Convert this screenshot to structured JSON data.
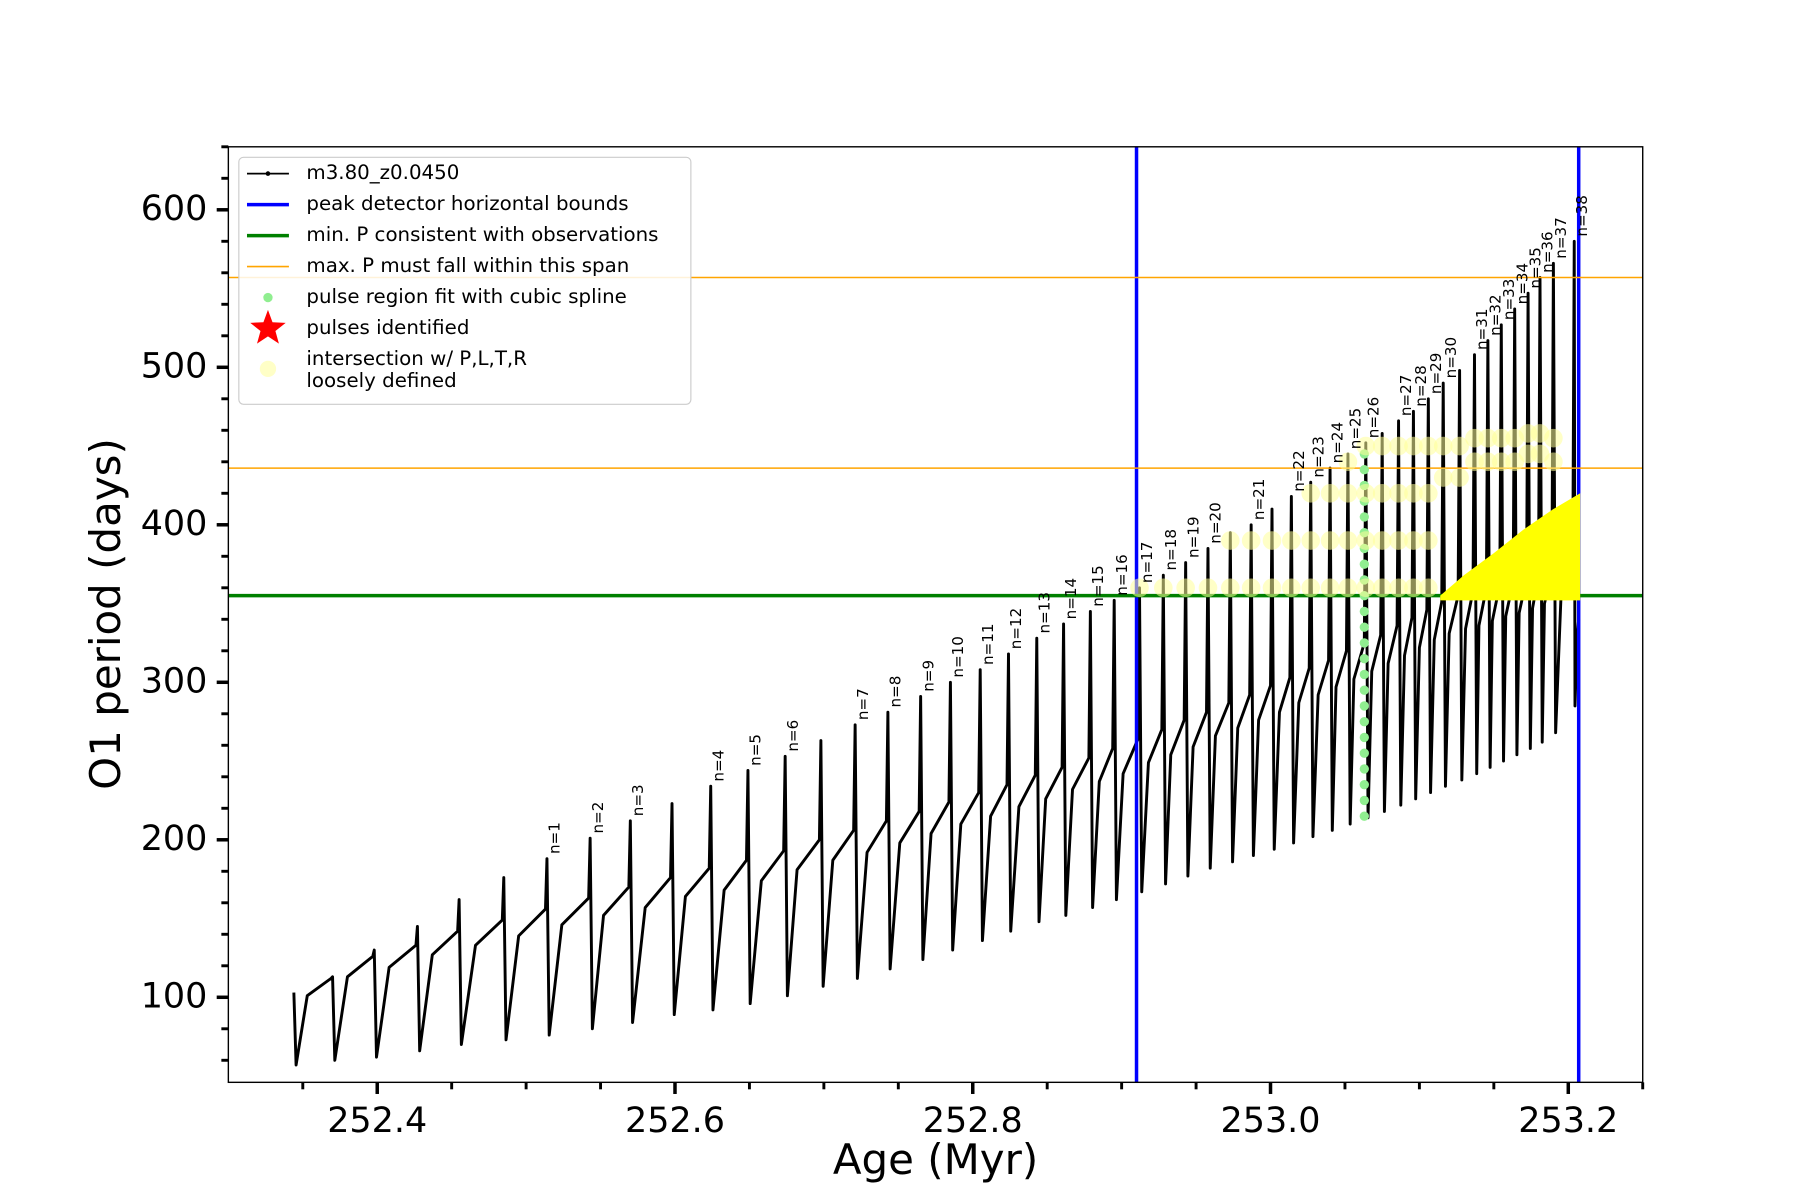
{
  "chart_data": {
    "type": "line",
    "xlabel": "Age (Myr)",
    "ylabel": "O1 period (days)",
    "xlim": [
      252.3,
      253.25
    ],
    "ylim": [
      46,
      640
    ],
    "xticks": [
      252.4,
      252.6,
      252.8,
      {
        "value": 253,
        "label": "253.0"
      },
      253.2
    ],
    "xminorticks": [
      252.35,
      252.45,
      252.5,
      252.55,
      252.65,
      252.7,
      252.75,
      252.85,
      252.9,
      252.95,
      253.05,
      253.1,
      253.15,
      253.25
    ],
    "yticks": [
      100,
      200,
      300,
      400,
      500,
      600
    ],
    "yminorticks": [
      60,
      80,
      120,
      140,
      160,
      180,
      220,
      240,
      260,
      280,
      320,
      340,
      360,
      380,
      420,
      440,
      460,
      480,
      520,
      540,
      560,
      580,
      620,
      640
    ],
    "legend": "upper left",
    "series": [
      {
        "name": "m3.80_z0.0450",
        "type": "line",
        "color": "#000000",
        "linewidth": 2.5,
        "x": [
          252.344,
          252.3455,
          252.353,
          252.369,
          252.37,
          252.3715,
          252.38,
          252.397,
          252.398,
          252.3995,
          252.408,
          252.426,
          252.427,
          252.4285,
          252.437,
          252.454,
          252.455,
          252.4565,
          252.466,
          252.484,
          252.485,
          252.4865,
          252.495,
          252.513,
          252.514,
          252.5155,
          252.524,
          252.542,
          252.543,
          252.5445,
          252.552,
          252.569,
          252.57,
          252.5715,
          252.58,
          252.597,
          252.598,
          252.5995,
          252.607,
          252.623,
          252.624,
          252.6255,
          252.633,
          252.648,
          252.649,
          252.6505,
          252.658,
          252.673,
          252.674,
          252.6755,
          252.682,
          252.697,
          252.698,
          252.6995,
          252.706,
          252.72,
          252.721,
          252.7225,
          252.729,
          252.742,
          252.743,
          252.7445,
          252.751,
          252.764,
          252.765,
          252.7665,
          252.772,
          252.784,
          252.785,
          252.7865,
          252.792,
          252.804,
          252.805,
          252.8065,
          252.812,
          252.823,
          252.824,
          252.8255,
          252.831,
          252.842,
          252.843,
          252.8445,
          252.849,
          252.86,
          252.861,
          252.8625,
          252.867,
          252.878,
          252.879,
          252.8805,
          252.885,
          252.894,
          252.895,
          252.8965,
          252.901,
          252.911,
          252.912,
          252.9135,
          252.918,
          252.927,
          252.928,
          252.9295,
          252.933,
          252.942,
          252.943,
          252.9445,
          252.948,
          252.957,
          252.958,
          252.9595,
          252.963,
          252.972,
          252.973,
          252.9745,
          252.978,
          252.986,
          252.987,
          252.9885,
          252.992,
          253.0,
          253.001,
          253.0025,
          253.006,
          253.013,
          253.014,
          253.0155,
          253.019,
          253.026,
          253.027,
          253.0285,
          253.032,
          253.039,
          253.04,
          253.0415,
          253.044,
          253.051,
          253.052,
          253.0535,
          253.056,
          253.063,
          253.064,
          253.0655,
          253.068,
          253.074,
          253.075,
          253.0765,
          253.079,
          253.085,
          253.086,
          253.0875,
          253.09,
          253.095,
          253.096,
          253.0975,
          253.1,
          253.105,
          253.106,
          253.1075,
          253.11,
          253.115,
          253.116,
          253.1175,
          253.12,
          253.126,
          253.127,
          253.1285,
          253.131,
          253.136,
          253.137,
          253.1385,
          253.14,
          253.145,
          253.146,
          253.1475,
          253.149,
          253.154,
          253.155,
          253.1565,
          253.158,
          253.163,
          253.164,
          253.1655,
          253.167,
          253.172,
          253.173,
          253.1745,
          253.176,
          253.18,
          253.181,
          253.1825,
          253.184,
          253.189,
          253.19,
          253.1915,
          253.195,
          253.203,
          253.204,
          253.2045,
          253.206,
          253.207
        ],
        "values": [
          103,
          57,
          101,
          112,
          113,
          60,
          113,
          126,
          130,
          62,
          119,
          133,
          145,
          66,
          127,
          142,
          162,
          70,
          133,
          149,
          176,
          73,
          139,
          156,
          188,
          76,
          146,
          163,
          201,
          80,
          152,
          170,
          212,
          84,
          157,
          176,
          223,
          89,
          164,
          182,
          234,
          92,
          168,
          187,
          244,
          96,
          174,
          193,
          253,
          101,
          181,
          200,
          263,
          107,
          187,
          206,
          273,
          112,
          192,
          212,
          281,
          118,
          198,
          218,
          291,
          124,
          204,
          224,
          300,
          130,
          210,
          230,
          308,
          136,
          215,
          235,
          318,
          142,
          221,
          241,
          328,
          148,
          226,
          246,
          337,
          152,
          232,
          252,
          345,
          157,
          237,
          258,
          352,
          162,
          242,
          264,
          360,
          167,
          249,
          270,
          368,
          172,
          254,
          276,
          376,
          177,
          259,
          281,
          385,
          182,
          266,
          287,
          395,
          186,
          271,
          292,
          400,
          190,
          276,
          298,
          410,
          194,
          281,
          303,
          418,
          198,
          287,
          309,
          427,
          202,
          292,
          314,
          436,
          206,
          297,
          320,
          445,
          210,
          302,
          325,
          452,
          214,
          307,
          330,
          458,
          218,
          312,
          336,
          466,
          222,
          317,
          341,
          472,
          226,
          322,
          346,
          480,
          230,
          327,
          351,
          490,
          234,
          331,
          355,
          498,
          238,
          334,
          358,
          508,
          242,
          336,
          360,
          517,
          246,
          339,
          362,
          527,
          250,
          342,
          364,
          537,
          254,
          344,
          366,
          547,
          258,
          347,
          368,
          557,
          262,
          350,
          370,
          566,
          268,
          352,
          372,
          580,
          285,
          330,
          340
        ]
      },
      {
        "name": "peak detector horizontal bounds",
        "type": "vline",
        "color": "#0000ff",
        "linewidth": 3,
        "x": [
          252.91,
          253.207
        ]
      },
      {
        "name": "min. P consistent with observations",
        "type": "hline",
        "color": "#008000",
        "linewidth": 3,
        "values": [
          355
        ]
      },
      {
        "name": "max. P must fall within this span",
        "type": "hline",
        "color": "#ffa500",
        "linewidth": 1.3,
        "values": [
          557,
          436
        ]
      },
      {
        "name": "pulse region fit with cubic spline",
        "type": "scatter",
        "color": "#90ee90",
        "marker_size": 4,
        "alpha": 1,
        "x": [
          253.063,
          253.063,
          253.063,
          253.063,
          253.063,
          253.063,
          253.063,
          253.063,
          253.063,
          253.063,
          253.063,
          253.063,
          253.063,
          253.063,
          253.063,
          253.063,
          253.063,
          253.063,
          253.063,
          253.063,
          253.063,
          253.063,
          253.063,
          253.063
        ],
        "values": [
          215,
          225,
          235,
          245,
          255,
          265,
          275,
          285,
          295,
          305,
          315,
          325,
          335,
          345,
          355,
          365,
          375,
          385,
          395,
          405,
          415,
          425,
          435,
          445
        ]
      },
      {
        "name": "pulses identified",
        "type": "star",
        "color": "#ff0000",
        "marker_size": 16,
        "x": [],
        "values": []
      },
      {
        "name": [
          "intersection w/ P,L,T,R",
          "loosely defined"
        ],
        "type": "scatter",
        "color": "#ffff99",
        "marker_size": 8,
        "alpha": 0.55,
        "x": [
          252.912,
          252.928,
          252.943,
          252.958,
          252.973,
          252.973,
          252.987,
          252.987,
          253.001,
          253.001,
          253.014,
          253.014,
          253.027,
          253.027,
          253.027,
          253.04,
          253.04,
          253.04,
          253.052,
          253.052,
          253.052,
          253.052,
          253.064,
          253.064,
          253.064,
          253.064,
          253.075,
          253.075,
          253.075,
          253.075,
          253.086,
          253.086,
          253.086,
          253.086,
          253.096,
          253.096,
          253.096,
          253.096,
          253.106,
          253.106,
          253.106,
          253.106,
          253.116,
          253.116,
          253.127,
          253.127,
          253.137,
          253.137,
          253.146,
          253.146,
          253.155,
          253.155,
          253.164,
          253.164,
          253.173,
          253.173,
          253.181,
          253.181,
          253.19,
          253.19
        ],
        "values": [
          360,
          360,
          360,
          360,
          360,
          390,
          360,
          390,
          360,
          390,
          360,
          390,
          360,
          390,
          420,
          360,
          390,
          420,
          360,
          390,
          420,
          440,
          360,
          390,
          420,
          450,
          360,
          390,
          420,
          450,
          360,
          390,
          420,
          450,
          360,
          390,
          420,
          450,
          360,
          390,
          420,
          450,
          430,
          450,
          430,
          450,
          440,
          455,
          440,
          455,
          440,
          455,
          440,
          455,
          445,
          458,
          445,
          458,
          440,
          455
        ]
      },
      {
        "type": "polygon",
        "color": "#ffff00",
        "x": [
          253.114,
          253.208,
          253.208,
          253.19,
          253.17,
          253.15,
          253.13,
          253.114
        ],
        "values": [
          352,
          352,
          420,
          410,
          397,
          382,
          368,
          355
        ]
      }
    ],
    "annotations": [
      {
        "text": "n=1",
        "x": 252.514,
        "y": 188
      },
      {
        "text": "n=2",
        "x": 252.543,
        "y": 201
      },
      {
        "text": "n=3",
        "x": 252.57,
        "y": 212
      },
      {
        "text": "n=4",
        "x": 252.624,
        "y": 234
      },
      {
        "text": "n=5",
        "x": 252.649,
        "y": 244
      },
      {
        "text": "n=6",
        "x": 252.674,
        "y": 253
      },
      {
        "text": "n=7",
        "x": 252.721,
        "y": 273
      },
      {
        "text": "n=8",
        "x": 252.743,
        "y": 281
      },
      {
        "text": "n=9",
        "x": 252.765,
        "y": 291
      },
      {
        "text": "n=10",
        "x": 252.785,
        "y": 300
      },
      {
        "text": "n=11",
        "x": 252.805,
        "y": 308
      },
      {
        "text": "n=12",
        "x": 252.824,
        "y": 318
      },
      {
        "text": "n=13",
        "x": 252.843,
        "y": 328
      },
      {
        "text": "n=14",
        "x": 252.861,
        "y": 337
      },
      {
        "text": "n=15",
        "x": 252.879,
        "y": 345
      },
      {
        "text": "n=16",
        "x": 252.895,
        "y": 352
      },
      {
        "text": "n=17",
        "x": 252.912,
        "y": 360
      },
      {
        "text": "n=18",
        "x": 252.928,
        "y": 368
      },
      {
        "text": "n=19",
        "x": 252.943,
        "y": 376
      },
      {
        "text": "n=20",
        "x": 252.958,
        "y": 385
      },
      {
        "text": "n=21",
        "x": 252.987,
        "y": 400
      },
      {
        "text": "n=22",
        "x": 253.014,
        "y": 418
      },
      {
        "text": "n=23",
        "x": 253.027,
        "y": 427
      },
      {
        "text": "n=24",
        "x": 253.04,
        "y": 436
      },
      {
        "text": "n=25",
        "x": 253.052,
        "y": 445
      },
      {
        "text": "n=26",
        "x": 253.064,
        "y": 452
      },
      {
        "text": "n=27",
        "x": 253.086,
        "y": 466
      },
      {
        "text": "n=28",
        "x": 253.096,
        "y": 472
      },
      {
        "text": "n=29",
        "x": 253.106,
        "y": 480
      },
      {
        "text": "n=30",
        "x": 253.116,
        "y": 490
      },
      {
        "text": "n=31",
        "x": 253.137,
        "y": 508
      },
      {
        "text": "n=32",
        "x": 253.146,
        "y": 517
      },
      {
        "text": "n=33",
        "x": 253.155,
        "y": 527
      },
      {
        "text": "n=34",
        "x": 253.164,
        "y": 537
      },
      {
        "text": "n=35",
        "x": 253.173,
        "y": 547
      },
      {
        "text": "n=36",
        "x": 253.181,
        "y": 557
      },
      {
        "text": "n=37",
        "x": 253.19,
        "y": 566
      },
      {
        "text": "n=38",
        "x": 253.204,
        "y": 580
      }
    ]
  }
}
